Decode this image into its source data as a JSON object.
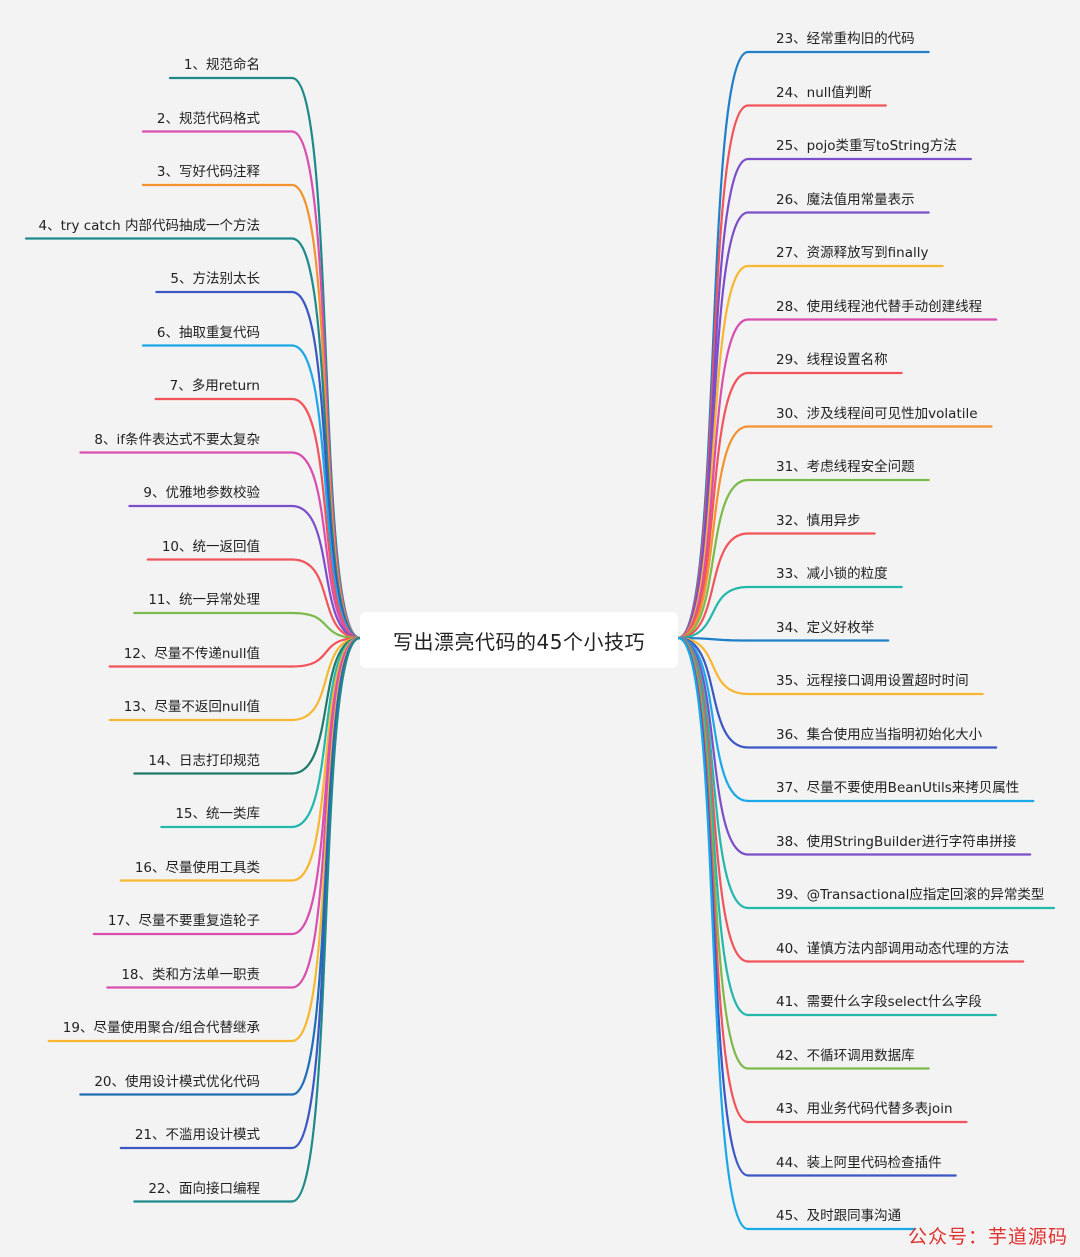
{
  "title": "写出漂亮代码的45个小技巧",
  "watermark": "公众号：芋道源码",
  "left_items": [
    {
      "label": "1、规范命名",
      "color": "#1f8a8a"
    },
    {
      "label": "2、规范代码格式",
      "color": "#d94fb0"
    },
    {
      "label": "3、写好代码注释",
      "color": "#f5922f"
    },
    {
      "label": "4、try catch 内部代码抽成一个方法",
      "color": "#1f8a8a"
    },
    {
      "label": "5、方法别太长",
      "color": "#3b57c4"
    },
    {
      "label": "6、抽取重复代码",
      "color": "#1ca8e8"
    },
    {
      "label": "7、多用return",
      "color": "#f2545b"
    },
    {
      "label": "8、if条件表达式不要太复杂",
      "color": "#d94fb0"
    },
    {
      "label": "9、优雅地参数校验",
      "color": "#7b4fc9"
    },
    {
      "label": "10、统一返回值",
      "color": "#f2545b"
    },
    {
      "label": "11、统一异常处理",
      "color": "#7cba4b"
    },
    {
      "label": "12、尽量不传递null值",
      "color": "#f2545b"
    },
    {
      "label": "13、尽量不返回null值",
      "color": "#f7b731"
    },
    {
      "label": "14、日志打印规范",
      "color": "#1f7a6a"
    },
    {
      "label": "15、统一类库",
      "color": "#24b7ac"
    },
    {
      "label": "16、尽量使用工具类",
      "color": "#f7b731"
    },
    {
      "label": "17、尽量不要重复造轮子",
      "color": "#d94fb0"
    },
    {
      "label": "18、类和方法单一职责",
      "color": "#d94fb0"
    },
    {
      "label": "19、尽量使用聚合/组合代替继承",
      "color": "#f7b731"
    },
    {
      "label": "20、使用设计模式优化代码",
      "color": "#1f6fb8"
    },
    {
      "label": "21、不滥用设计模式",
      "color": "#3b57c4"
    },
    {
      "label": "22、面向接口编程",
      "color": "#1f8a8a"
    }
  ],
  "right_items": [
    {
      "label": "23、经常重构旧的代码",
      "color": "#1f7fc8"
    },
    {
      "label": "24、null值判断",
      "color": "#f2545b"
    },
    {
      "label": "25、pojo类重写toString方法",
      "color": "#7b4fc9"
    },
    {
      "label": "26、魔法值用常量表示",
      "color": "#7b4fc9"
    },
    {
      "label": "27、资源释放写到finally",
      "color": "#f7b731"
    },
    {
      "label": "28、使用线程池代替手动创建线程",
      "color": "#d94fb0"
    },
    {
      "label": "29、线程设置名称",
      "color": "#f2545b"
    },
    {
      "label": "30、涉及线程间可见性加volatile",
      "color": "#f5922f"
    },
    {
      "label": "31、考虑线程安全问题",
      "color": "#7cba4b"
    },
    {
      "label": "32、慎用异步",
      "color": "#f2545b"
    },
    {
      "label": "33、减小锁的粒度",
      "color": "#24b7ac"
    },
    {
      "label": "34、定义好枚举",
      "color": "#1f7fc8"
    },
    {
      "label": "35、远程接口调用设置超时时间",
      "color": "#f7b731"
    },
    {
      "label": "36、集合使用应当指明初始化大小",
      "color": "#3b57c4"
    },
    {
      "label": "37、尽量不要使用BeanUtils来拷贝属性",
      "color": "#1ca8e8"
    },
    {
      "label": "38、使用StringBuilder进行字符串拼接",
      "color": "#7b4fc9"
    },
    {
      "label": "39、@Transactional应指定回滚的异常类型",
      "color": "#24b7ac"
    },
    {
      "label": "40、谨慎方法内部调用动态代理的方法",
      "color": "#f2545b"
    },
    {
      "label": "41、需要什么字段select什么字段",
      "color": "#24b7ac"
    },
    {
      "label": "42、不循环调用数据库",
      "color": "#7cba4b"
    },
    {
      "label": "43、用业务代码代替多表join",
      "color": "#f2545b"
    },
    {
      "label": "44、装上阿里代码检查插件",
      "color": "#3b57c4"
    },
    {
      "label": "45、及时跟同事沟通",
      "color": "#1ca8e8"
    }
  ]
}
